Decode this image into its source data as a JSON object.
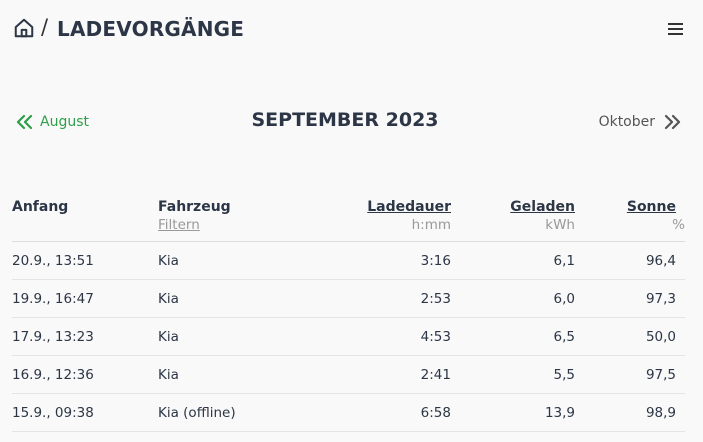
{
  "header": {
    "separator": "/",
    "title": "LADEVORGÄNGE"
  },
  "nav": {
    "prev_label": "August",
    "month_title": "SEPTEMBER 2023",
    "next_label": "Oktober"
  },
  "table": {
    "columns": [
      "Anfang",
      "Fahrzeug",
      "Ladedauer",
      "Geladen",
      "Sonne"
    ],
    "subheaders": [
      "",
      "Filtern",
      "h:mm",
      "kWh",
      "%"
    ],
    "rows": [
      [
        "20.9., 13:51",
        "Kia",
        "3:16",
        "6,1",
        "96,4"
      ],
      [
        "19.9., 16:47",
        "Kia",
        "2:53",
        "6,0",
        "97,3"
      ],
      [
        "17.9., 13:23",
        "Kia",
        "4:53",
        "6,5",
        "50,0"
      ],
      [
        "16.9., 12:36",
        "Kia",
        "2:41",
        "5,5",
        "97,5"
      ],
      [
        "15.9., 09:38",
        "Kia (offline)",
        "6:58",
        "13,9",
        "98,9"
      ]
    ]
  },
  "icons": {
    "home": "home-icon",
    "menu": "menu-icon",
    "prev": "double-chevron-left-icon",
    "next": "double-chevron-right-icon"
  },
  "colors": {
    "accent": "#2e9e4a",
    "title": "#2c3646"
  }
}
